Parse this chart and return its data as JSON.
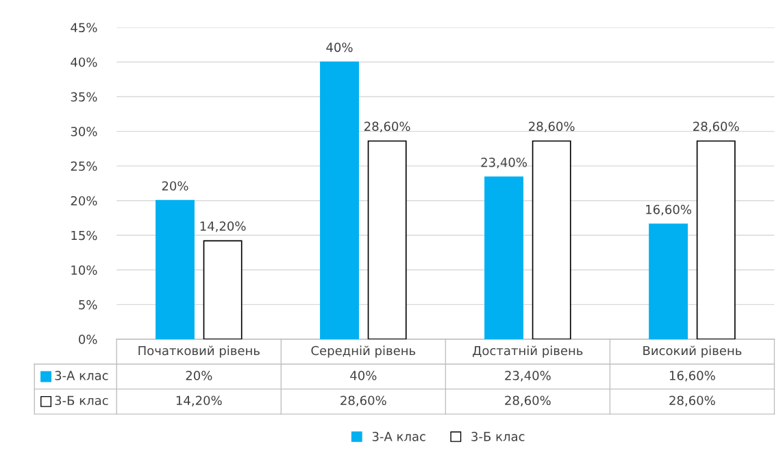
{
  "chart_data": {
    "type": "bar",
    "categories": [
      "Початковий рівень",
      "Середній рівень",
      "Достатній рівень",
      "Високий рівень"
    ],
    "series": [
      {
        "name": "3-А клас",
        "color": "#00b0f0",
        "values": [
          20,
          40,
          23.4,
          16.6
        ],
        "value_labels": [
          "20%",
          "40%",
          "23,40%",
          "16,60%"
        ]
      },
      {
        "name": "3-Б клас",
        "color": "#ffffff",
        "values": [
          14.2,
          28.6,
          28.6,
          28.6
        ],
        "value_labels": [
          "14,20%",
          "28,60%",
          "28,60%",
          "28,60%"
        ]
      }
    ],
    "ylim": [
      0,
      45
    ],
    "yticks": [
      {
        "value": 0,
        "label": "0%"
      },
      {
        "value": 5,
        "label": "5%"
      },
      {
        "value": 10,
        "label": "10%"
      },
      {
        "value": 15,
        "label": "15%"
      },
      {
        "value": 20,
        "label": "20%"
      },
      {
        "value": 25,
        "label": "25%"
      },
      {
        "value": 30,
        "label": "30%"
      },
      {
        "value": 35,
        "label": "35%"
      },
      {
        "value": 40,
        "label": "40%"
      },
      {
        "value": 45,
        "label": "45%"
      }
    ],
    "grid": "y",
    "legend": "bottom"
  }
}
